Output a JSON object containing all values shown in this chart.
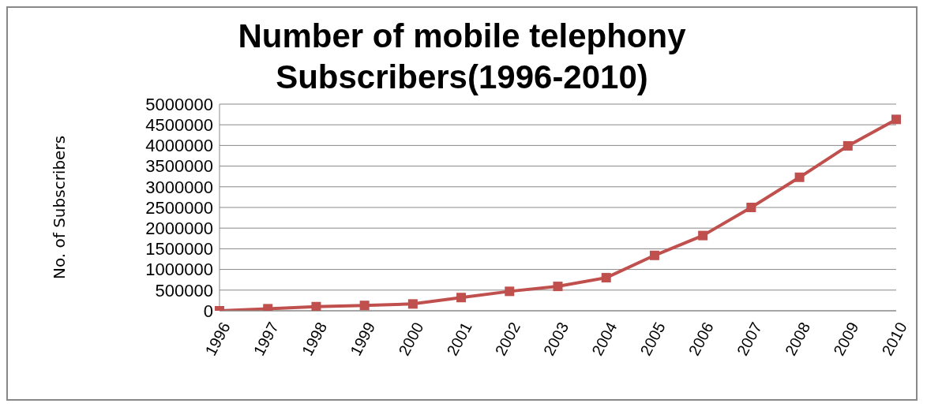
{
  "chart_data": {
    "type": "line",
    "title": "Number of mobile telephony Subscribers(1996-2010)",
    "ylabel": "No. of Subscribers",
    "categories": [
      "1996",
      "1997",
      "1998",
      "1999",
      "2000",
      "2001",
      "2002",
      "2003",
      "2004",
      "2005",
      "2006",
      "2007",
      "2008",
      "2009",
      "2010"
    ],
    "series": [
      {
        "color": "#c0504d",
        "values": [
          0,
          50000,
          100000,
          130000,
          165000,
          320000,
          470000,
          590000,
          800000,
          1340000,
          1820000,
          2500000,
          3230000,
          3990000,
          4630000
        ]
      }
    ],
    "ylim": [
      0,
      5000000
    ],
    "yticks": [
      0,
      500000,
      1000000,
      1500000,
      2000000,
      2500000,
      3000000,
      3500000,
      4000000,
      4500000,
      5000000
    ],
    "grid": "y",
    "marker": "square",
    "line_style": "solid",
    "legend": false
  }
}
